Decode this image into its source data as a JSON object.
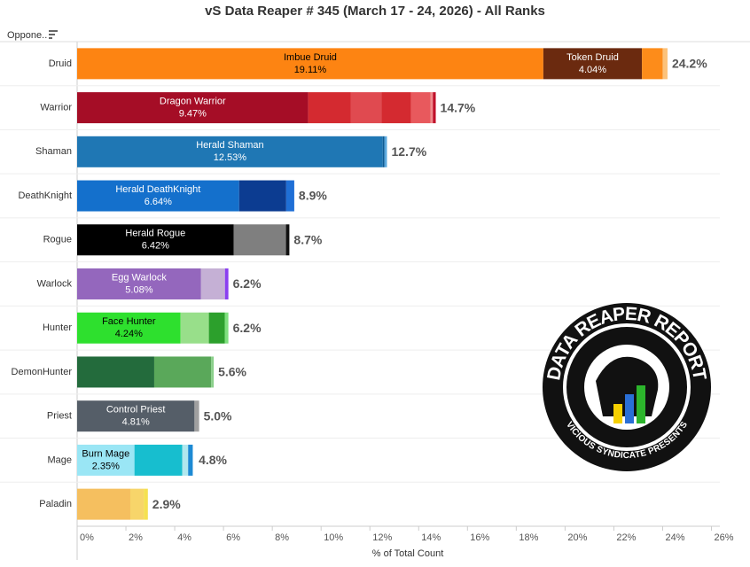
{
  "chart_data": {
    "type": "stacked-barh",
    "title": "vS Data Reaper # 345 (March 17 - 24, 2026) - All Ranks",
    "filter_label": "Oppone..",
    "x_label": "% of Total Count",
    "xlim": [
      0,
      26
    ],
    "xticks": [
      {
        "value": 0,
        "label": "0%"
      },
      {
        "value": 2,
        "label": "2%"
      },
      {
        "value": 4,
        "label": "4%"
      },
      {
        "value": 6,
        "label": "6%"
      },
      {
        "value": 8,
        "label": "8%"
      },
      {
        "value": 10,
        "label": "10%"
      },
      {
        "value": 12,
        "label": "12%"
      },
      {
        "value": 14,
        "label": "14%"
      },
      {
        "value": 16,
        "label": "16%"
      },
      {
        "value": 18,
        "label": "18%"
      },
      {
        "value": 20,
        "label": "20%"
      },
      {
        "value": 22,
        "label": "22%"
      },
      {
        "value": 24,
        "label": "24%"
      },
      {
        "value": 26,
        "label": "26%"
      }
    ],
    "categories": [
      "Druid",
      "Warrior",
      "Shaman",
      "DeathKnight",
      "Rogue",
      "Warlock",
      "Hunter",
      "DemonHunter",
      "Priest",
      "Mage",
      "Paladin"
    ],
    "totals": [
      24.2,
      14.7,
      12.7,
      8.9,
      8.7,
      6.2,
      6.2,
      5.6,
      5.0,
      4.8,
      2.9
    ],
    "total_labels": [
      "24.2%",
      "14.7%",
      "12.7%",
      "8.9%",
      "8.7%",
      "6.2%",
      "6.2%",
      "5.6%",
      "5.0%",
      "4.8%",
      "2.9%"
    ],
    "rows": [
      [
        {
          "name": "Imbue Druid",
          "value": 19.11,
          "value_label": "19.11%",
          "color": "#fd8412"
        },
        {
          "name": "Token Druid",
          "value": 4.04,
          "value_label": "4.04%",
          "color": "#6b2a0f"
        },
        {
          "value": 0.85,
          "color": "#fd8c1a"
        },
        {
          "value": 0.2,
          "color": "#fcc27a"
        }
      ],
      [
        {
          "name": "Dragon Warrior",
          "value": 9.47,
          "value_label": "9.47%",
          "color": "#a50d26"
        },
        {
          "value": 1.74,
          "color": "#d42a30"
        },
        {
          "value": 1.27,
          "color": "#e04a50"
        },
        {
          "value": 1.2,
          "color": "#d42a30"
        },
        {
          "value": 0.8,
          "color": "#e8595d"
        },
        {
          "value": 0.1,
          "color": "#f08a8c"
        },
        {
          "value": 0.12,
          "color": "#c0102a"
        }
      ],
      [
        {
          "name": "Herald Shaman",
          "value": 12.53,
          "value_label": "12.53%",
          "color": "#1f77b4"
        },
        {
          "value": 0.07,
          "color": "#0d5b94"
        },
        {
          "value": 0.1,
          "color": "#5aa8de"
        }
      ],
      [
        {
          "name": "Herald DeathKnight",
          "value": 6.64,
          "value_label": "6.64%",
          "color": "#1470cc"
        },
        {
          "value": 1.93,
          "color": "#0c3c91"
        },
        {
          "value": 0.33,
          "color": "#1f6fd6"
        }
      ],
      [
        {
          "name": "Herald Rogue",
          "value": 6.42,
          "value_label": "6.42%",
          "color": "#000000"
        },
        {
          "value": 2.14,
          "color": "#7f7f7f"
        },
        {
          "value": 0.14,
          "color": "#111111"
        }
      ],
      [
        {
          "name": "Egg Warlock",
          "value": 5.08,
          "value_label": "5.08%",
          "color": "#9467bd"
        },
        {
          "value": 0.98,
          "color": "#c5b0d5"
        },
        {
          "value": 0.14,
          "color": "#8a3ff0"
        }
      ],
      [
        {
          "name": "Face Hunter",
          "value": 4.24,
          "value_label": "4.24%",
          "color": "#2ee02e"
        },
        {
          "value": 1.16,
          "color": "#98df8a"
        },
        {
          "value": 0.65,
          "color": "#2ca02c"
        },
        {
          "value": 0.15,
          "color": "#7ee07e"
        }
      ],
      [
        {
          "value": 3.16,
          "color": "#236b3c"
        },
        {
          "value": 2.33,
          "color": "#5aa85a"
        },
        {
          "value": 0.11,
          "color": "#8bd08b"
        }
      ],
      [
        {
          "name": "Control Priest",
          "value": 4.81,
          "value_label": "4.81%",
          "color": "#555e68"
        },
        {
          "value": 0.19,
          "color": "#a0a0a0"
        }
      ],
      [
        {
          "name": "Burn Mage",
          "value": 2.35,
          "value_label": "2.35%",
          "color": "#9ae6f5"
        },
        {
          "value": 1.96,
          "color": "#17becf"
        },
        {
          "value": 0.24,
          "color": "#b0e8ee"
        },
        {
          "value": 0.19,
          "color": "#1d8ad4"
        }
      ],
      [
        {
          "value": 2.18,
          "color": "#f5bf5f"
        },
        {
          "value": 0.55,
          "color": "#f7d56a"
        },
        {
          "value": 0.17,
          "color": "#f5e050"
        }
      ]
    ]
  },
  "logo": {
    "title": "DATA REAPER REPORT",
    "subtitle": "VICIOUS SYNDICATE PRESENTS"
  }
}
